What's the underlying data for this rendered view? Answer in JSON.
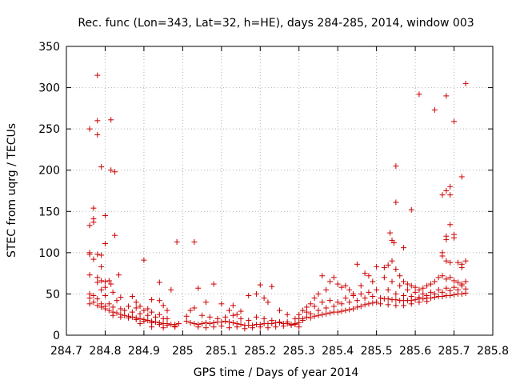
{
  "chart_data": {
    "type": "scatter",
    "title": "Rec. func (Lon=343, Lat=32, h=HE), days 284-285, 2014, window 003",
    "xlabel": "GPS time / Days of year 2014",
    "ylabel": "STEC from uqrg / TECUs",
    "xlim": [
      284.7,
      285.8
    ],
    "ylim": [
      0,
      350
    ],
    "xticks": [
      "284.7",
      "284.8",
      "284.9",
      "285",
      "285.1",
      "285.2",
      "285.3",
      "285.4",
      "285.5",
      "285.6",
      "285.7",
      "285.8"
    ],
    "yticks": [
      "0",
      "50",
      "100",
      "150",
      "200",
      "250",
      "300",
      "350"
    ],
    "grid": true,
    "marker": "+",
    "color": "#cc0000",
    "points": [
      [
        284.76,
        250
      ],
      [
        284.78,
        315
      ],
      [
        284.78,
        260
      ],
      [
        284.78,
        243
      ],
      [
        284.815,
        261
      ],
      [
        284.79,
        204
      ],
      [
        284.815,
        200
      ],
      [
        284.825,
        198
      ],
      [
        284.77,
        154
      ],
      [
        284.8,
        145
      ],
      [
        284.77,
        141
      ],
      [
        284.77,
        137
      ],
      [
        284.76,
        133
      ],
      [
        284.825,
        121
      ],
      [
        284.8,
        111
      ],
      [
        284.76,
        100
      ],
      [
        284.76,
        98
      ],
      [
        284.78,
        98
      ],
      [
        284.79,
        97
      ],
      [
        284.77,
        92
      ],
      [
        284.79,
        83
      ],
      [
        284.835,
        73
      ],
      [
        284.76,
        73
      ],
      [
        284.78,
        70
      ],
      [
        284.79,
        66
      ],
      [
        284.8,
        65
      ],
      [
        284.81,
        66
      ],
      [
        284.78,
        64
      ],
      [
        284.815,
        62
      ],
      [
        284.8,
        58
      ],
      [
        284.79,
        55
      ],
      [
        284.82,
        52
      ],
      [
        284.76,
        50
      ],
      [
        284.77,
        48
      ],
      [
        284.8,
        48
      ],
      [
        284.84,
        46
      ],
      [
        284.76,
        45
      ],
      [
        284.78,
        44
      ],
      [
        284.83,
        42
      ],
      [
        284.77,
        40
      ],
      [
        284.79,
        38
      ],
      [
        284.81,
        38
      ],
      [
        284.8,
        35
      ],
      [
        284.82,
        34
      ],
      [
        284.84,
        32
      ],
      [
        284.76,
        38
      ],
      [
        284.78,
        36
      ],
      [
        284.79,
        34
      ],
      [
        284.8,
        32
      ],
      [
        284.81,
        30
      ],
      [
        284.82,
        28
      ],
      [
        284.83,
        27
      ],
      [
        284.84,
        25
      ],
      [
        284.85,
        24
      ],
      [
        284.86,
        23
      ],
      [
        284.87,
        22
      ],
      [
        284.88,
        21
      ],
      [
        284.89,
        20
      ],
      [
        284.9,
        19
      ],
      [
        284.91,
        18
      ],
      [
        284.92,
        17
      ],
      [
        284.93,
        16
      ],
      [
        284.94,
        15
      ],
      [
        284.95,
        14
      ],
      [
        284.96,
        14
      ],
      [
        284.97,
        13
      ],
      [
        284.98,
        13
      ],
      [
        284.82,
        24
      ],
      [
        284.84,
        22
      ],
      [
        284.86,
        21
      ],
      [
        284.88,
        19
      ],
      [
        284.9,
        17
      ],
      [
        284.92,
        15
      ],
      [
        284.94,
        13
      ],
      [
        284.96,
        12
      ],
      [
        284.98,
        11
      ],
      [
        284.85,
        30
      ],
      [
        284.87,
        28
      ],
      [
        284.89,
        26
      ],
      [
        284.91,
        24
      ],
      [
        284.93,
        22
      ],
      [
        284.95,
        20
      ],
      [
        284.86,
        35
      ],
      [
        284.88,
        33
      ],
      [
        284.9,
        30
      ],
      [
        284.92,
        28
      ],
      [
        284.94,
        25
      ],
      [
        284.96,
        20
      ],
      [
        284.9,
        91
      ],
      [
        284.94,
        64
      ],
      [
        284.97,
        55
      ],
      [
        284.92,
        43
      ],
      [
        284.94,
        42
      ],
      [
        284.95,
        36
      ],
      [
        284.96,
        30
      ],
      [
        284.92,
        10
      ],
      [
        284.95,
        9
      ],
      [
        284.98,
        10
      ],
      [
        284.985,
        113
      ],
      [
        284.99,
        14
      ],
      [
        284.87,
        47
      ],
      [
        284.88,
        40
      ],
      [
        284.89,
        35
      ],
      [
        284.91,
        32
      ],
      [
        284.89,
        14
      ],
      [
        285.03,
        113
      ],
      [
        285.01,
        23
      ],
      [
        285.01,
        17
      ],
      [
        285.02,
        15
      ],
      [
        285.03,
        14
      ],
      [
        285.04,
        13
      ],
      [
        285.05,
        14
      ],
      [
        285.06,
        15
      ],
      [
        285.07,
        14
      ],
      [
        285.08,
        15
      ],
      [
        285.09,
        16
      ],
      [
        285.1,
        16
      ],
      [
        285.11,
        17
      ],
      [
        285.12,
        16
      ],
      [
        285.13,
        15
      ],
      [
        285.14,
        14
      ],
      [
        285.15,
        13
      ],
      [
        285.16,
        12
      ],
      [
        285.17,
        12
      ],
      [
        285.18,
        12
      ],
      [
        285.19,
        13
      ],
      [
        285.2,
        13
      ],
      [
        285.21,
        14
      ],
      [
        285.22,
        14
      ],
      [
        285.23,
        14
      ],
      [
        285.24,
        15
      ],
      [
        285.25,
        15
      ],
      [
        285.26,
        14
      ],
      [
        285.27,
        14
      ],
      [
        285.28,
        13
      ],
      [
        285.29,
        13
      ],
      [
        285.3,
        15
      ],
      [
        285.04,
        57
      ],
      [
        285.06,
        40
      ],
      [
        285.08,
        62
      ],
      [
        285.1,
        38
      ],
      [
        285.12,
        30
      ],
      [
        285.13,
        36
      ],
      [
        285.14,
        25
      ],
      [
        285.15,
        29
      ],
      [
        285.17,
        48
      ],
      [
        285.19,
        50
      ],
      [
        285.2,
        61
      ],
      [
        285.22,
        40
      ],
      [
        285.23,
        59
      ],
      [
        285.21,
        45
      ],
      [
        285.25,
        30
      ],
      [
        285.27,
        25
      ],
      [
        285.29,
        20
      ],
      [
        285.02,
        30
      ],
      [
        285.03,
        33
      ],
      [
        285.05,
        24
      ],
      [
        285.07,
        22
      ],
      [
        285.09,
        20
      ],
      [
        285.11,
        22
      ],
      [
        285.13,
        24
      ],
      [
        285.15,
        20
      ],
      [
        285.17,
        18
      ],
      [
        285.19,
        22
      ],
      [
        285.21,
        20
      ],
      [
        285.23,
        18
      ],
      [
        285.25,
        16
      ],
      [
        285.27,
        16
      ],
      [
        285.29,
        14
      ],
      [
        285.04,
        10
      ],
      [
        285.06,
        9
      ],
      [
        285.08,
        10
      ],
      [
        285.1,
        11
      ],
      [
        285.12,
        9
      ],
      [
        285.14,
        10
      ],
      [
        285.16,
        8
      ],
      [
        285.18,
        9
      ],
      [
        285.2,
        10
      ],
      [
        285.22,
        9
      ],
      [
        285.24,
        10
      ],
      [
        285.26,
        11
      ],
      [
        285.28,
        12
      ],
      [
        285.3,
        10
      ],
      [
        285.31,
        20
      ],
      [
        285.32,
        22
      ],
      [
        285.33,
        21
      ],
      [
        285.34,
        23
      ],
      [
        285.35,
        24
      ],
      [
        285.36,
        25
      ],
      [
        285.37,
        26
      ],
      [
        285.38,
        27
      ],
      [
        285.39,
        28
      ],
      [
        285.4,
        28
      ],
      [
        285.41,
        29
      ],
      [
        285.42,
        30
      ],
      [
        285.43,
        31
      ],
      [
        285.44,
        32
      ],
      [
        285.45,
        34
      ],
      [
        285.46,
        35
      ],
      [
        285.47,
        37
      ],
      [
        285.48,
        38
      ],
      [
        285.49,
        39
      ],
      [
        285.5,
        40
      ],
      [
        285.31,
        30
      ],
      [
        285.32,
        34
      ],
      [
        285.33,
        38
      ],
      [
        285.34,
        45
      ],
      [
        285.35,
        50
      ],
      [
        285.36,
        72
      ],
      [
        285.37,
        55
      ],
      [
        285.38,
        65
      ],
      [
        285.39,
        70
      ],
      [
        285.4,
        62
      ],
      [
        285.41,
        58
      ],
      [
        285.42,
        60
      ],
      [
        285.43,
        55
      ],
      [
        285.44,
        50
      ],
      [
        285.45,
        86
      ],
      [
        285.46,
        60
      ],
      [
        285.47,
        75
      ],
      [
        285.48,
        72
      ],
      [
        285.49,
        65
      ],
      [
        285.5,
        83
      ],
      [
        285.34,
        35
      ],
      [
        285.36,
        40
      ],
      [
        285.38,
        42
      ],
      [
        285.4,
        40
      ],
      [
        285.42,
        45
      ],
      [
        285.44,
        48
      ],
      [
        285.46,
        50
      ],
      [
        285.48,
        52
      ],
      [
        285.5,
        55
      ],
      [
        285.35,
        30
      ],
      [
        285.37,
        33
      ],
      [
        285.39,
        35
      ],
      [
        285.41,
        38
      ],
      [
        285.43,
        40
      ],
      [
        285.45,
        42
      ],
      [
        285.47,
        45
      ],
      [
        285.49,
        47
      ],
      [
        285.32,
        28
      ],
      [
        285.33,
        26
      ],
      [
        285.3,
        25
      ],
      [
        285.31,
        18
      ],
      [
        285.3,
        20
      ],
      [
        285.51,
        45
      ],
      [
        285.52,
        44
      ],
      [
        285.53,
        44
      ],
      [
        285.54,
        43
      ],
      [
        285.55,
        43
      ],
      [
        285.56,
        42
      ],
      [
        285.57,
        42
      ],
      [
        285.58,
        42
      ],
      [
        285.59,
        42
      ],
      [
        285.6,
        43
      ],
      [
        285.61,
        44
      ],
      [
        285.62,
        44
      ],
      [
        285.63,
        45
      ],
      [
        285.64,
        45
      ],
      [
        285.65,
        46
      ],
      [
        285.66,
        47
      ],
      [
        285.67,
        47
      ],
      [
        285.68,
        48
      ],
      [
        285.69,
        48
      ],
      [
        285.7,
        49
      ],
      [
        285.71,
        50
      ],
      [
        285.72,
        50
      ],
      [
        285.73,
        51
      ],
      [
        285.535,
        124
      ],
      [
        285.54,
        115
      ],
      [
        285.545,
        112
      ],
      [
        285.55,
        205
      ],
      [
        285.55,
        161
      ],
      [
        285.57,
        106
      ],
      [
        285.59,
        152
      ],
      [
        285.61,
        292
      ],
      [
        285.65,
        273
      ],
      [
        285.68,
        290
      ],
      [
        285.7,
        259
      ],
      [
        285.72,
        192
      ],
      [
        285.73,
        305
      ],
      [
        285.67,
        170
      ],
      [
        285.68,
        175
      ],
      [
        285.69,
        180
      ],
      [
        285.69,
        170
      ],
      [
        285.69,
        134
      ],
      [
        285.68,
        120
      ],
      [
        285.68,
        116
      ],
      [
        285.7,
        122
      ],
      [
        285.7,
        118
      ],
      [
        285.67,
        100
      ],
      [
        285.67,
        96
      ],
      [
        285.68,
        90
      ],
      [
        285.69,
        88
      ],
      [
        285.71,
        88
      ],
      [
        285.72,
        86
      ],
      [
        285.72,
        82
      ],
      [
        285.73,
        90
      ],
      [
        285.52,
        82
      ],
      [
        285.53,
        85
      ],
      [
        285.54,
        90
      ],
      [
        285.55,
        80
      ],
      [
        285.56,
        72
      ],
      [
        285.57,
        65
      ],
      [
        285.58,
        62
      ],
      [
        285.59,
        60
      ],
      [
        285.6,
        58
      ],
      [
        285.61,
        55
      ],
      [
        285.62,
        57
      ],
      [
        285.63,
        60
      ],
      [
        285.64,
        62
      ],
      [
        285.65,
        65
      ],
      [
        285.66,
        70
      ],
      [
        285.67,
        72
      ],
      [
        285.68,
        68
      ],
      [
        285.69,
        70
      ],
      [
        285.7,
        66
      ],
      [
        285.71,
        64
      ],
      [
        285.72,
        62
      ],
      [
        285.73,
        65
      ],
      [
        285.52,
        70
      ],
      [
        285.54,
        65
      ],
      [
        285.56,
        60
      ],
      [
        285.58,
        55
      ],
      [
        285.6,
        52
      ],
      [
        285.62,
        50
      ],
      [
        285.64,
        52
      ],
      [
        285.66,
        55
      ],
      [
        285.68,
        57
      ],
      [
        285.7,
        58
      ],
      [
        285.72,
        60
      ],
      [
        285.53,
        55
      ],
      [
        285.55,
        50
      ],
      [
        285.57,
        48
      ],
      [
        285.59,
        47
      ],
      [
        285.61,
        46
      ],
      [
        285.63,
        48
      ],
      [
        285.65,
        50
      ],
      [
        285.67,
        52
      ],
      [
        285.69,
        54
      ],
      [
        285.71,
        55
      ],
      [
        285.73,
        56
      ],
      [
        285.51,
        38
      ],
      [
        285.53,
        37
      ],
      [
        285.55,
        36
      ],
      [
        285.57,
        36
      ],
      [
        285.59,
        38
      ],
      [
        285.61,
        40
      ],
      [
        285.63,
        41
      ]
    ]
  }
}
